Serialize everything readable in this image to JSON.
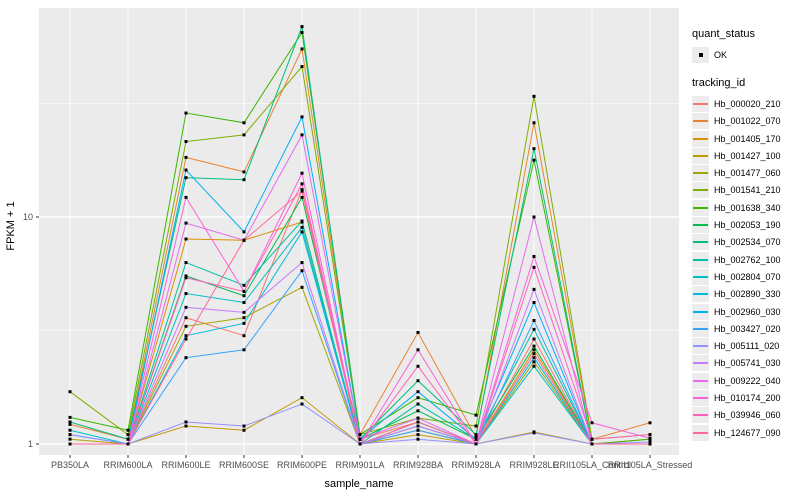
{
  "chart_data": {
    "type": "line",
    "title": "",
    "xlabel": "sample_name",
    "ylabel": "FPKM + 1",
    "y_scale": "log10",
    "ylim": [
      0.93,
      80
    ],
    "yticks": [
      {
        "label": "1",
        "value": 1
      },
      {
        "label": "10",
        "value": 10
      }
    ],
    "y_minor_gridlines": [
      3.1623,
      31.623
    ],
    "grid": "on",
    "panel_background": "#ebebeb",
    "gridline_color": "#ffffff",
    "point_marker": {
      "shape": "square",
      "color": "#000000",
      "size": 3
    },
    "legend_position": "right",
    "categories": [
      "PB350LA",
      "RRIM600LA",
      "RRIM600LE",
      "RRIM600SE",
      "RRIM600PE",
      "RRIM901LA",
      "RRIM928BA",
      "RRIM928LA",
      "RRIM928LE",
      "RRII105LA_Control",
      "RRII105LA_Stressed"
    ],
    "series": [
      {
        "name": "Hb_000020_210",
        "color": "#F8766D",
        "values": [
          1.0,
          1.0,
          3.6,
          3.0,
          13.2,
          1.05,
          1.25,
          1.0,
          2.9,
          1.0,
          1.0
        ]
      },
      {
        "name": "Hb_001022_070",
        "color": "#EA8331",
        "values": [
          1.22,
          1.05,
          18.3,
          15.8,
          55,
          1.1,
          3.1,
          1.07,
          26,
          1.05,
          1.24
        ]
      },
      {
        "name": "Hb_001405_170",
        "color": "#D89000",
        "values": [
          1.0,
          1.0,
          8.0,
          7.9,
          9.5,
          1.0,
          1.2,
          1.0,
          2.6,
          1.0,
          1.0
        ]
      },
      {
        "name": "Hb_001427_100",
        "color": "#C09B00",
        "values": [
          1.05,
          1.0,
          1.2,
          1.15,
          1.6,
          1.0,
          1.1,
          1.0,
          1.13,
          1.0,
          1.05
        ]
      },
      {
        "name": "Hb_001477_060",
        "color": "#A3A500",
        "values": [
          1.0,
          1.0,
          3.3,
          3.6,
          4.9,
          1.0,
          1.15,
          1.0,
          2.3,
          1.0,
          1.0
        ]
      },
      {
        "name": "Hb_001541_210",
        "color": "#7CAE00",
        "values": [
          1.7,
          1.1,
          21.5,
          23,
          46,
          1.1,
          1.3,
          1.2,
          34,
          1.05,
          1.1
        ]
      },
      {
        "name": "Hb_001638_340",
        "color": "#39B600",
        "values": [
          1.31,
          1.15,
          28.7,
          26,
          65,
          1.1,
          1.6,
          1.34,
          17.8,
          1.0,
          1.05
        ]
      },
      {
        "name": "Hb_002053_190",
        "color": "#00BB4E",
        "values": [
          1.0,
          1.0,
          5.5,
          4.5,
          12.2,
          1.05,
          1.4,
          1.05,
          2.7,
          1.0,
          1.0
        ]
      },
      {
        "name": "Hb_002534_070",
        "color": "#00BF7D",
        "values": [
          1.25,
          1.05,
          14.9,
          14.6,
          69,
          1.05,
          1.9,
          1.1,
          20,
          1.0,
          1.0
        ]
      },
      {
        "name": "Hb_002762_100",
        "color": "#00C1A3",
        "values": [
          1.0,
          1.0,
          6.3,
          5.0,
          9.6,
          1.0,
          1.5,
          1.05,
          3.2,
          1.0,
          1.0
        ]
      },
      {
        "name": "Hb_002804_070",
        "color": "#00BFC4",
        "values": [
          1.15,
          1.0,
          4.6,
          4.2,
          9.0,
          1.0,
          1.25,
          1.0,
          2.2,
          1.0,
          1.0
        ]
      },
      {
        "name": "Hb_002890_330",
        "color": "#00BAE0",
        "values": [
          1.0,
          1.0,
          3.0,
          3.4,
          8.6,
          1.0,
          1.2,
          1.0,
          2.4,
          1.0,
          1.0
        ]
      },
      {
        "name": "Hb_002960_030",
        "color": "#00B0F6",
        "values": [
          1.1,
          1.0,
          16.1,
          8.6,
          27.6,
          1.05,
          1.7,
          1.05,
          4.2,
          1.0,
          1.0
        ]
      },
      {
        "name": "Hb_003427_020",
        "color": "#35A2FF",
        "values": [
          1.0,
          1.0,
          2.4,
          2.6,
          5.8,
          1.0,
          1.15,
          1.0,
          3.5,
          1.0,
          1.0
        ]
      },
      {
        "name": "Hb_005111_020",
        "color": "#9590FF",
        "values": [
          1.1,
          1.0,
          1.25,
          1.2,
          1.5,
          1.0,
          1.05,
          1.0,
          1.12,
          1.0,
          1.02
        ]
      },
      {
        "name": "Hb_005741_030",
        "color": "#C77CFF",
        "values": [
          1.0,
          1.0,
          4.0,
          3.8,
          6.3,
          1.0,
          1.2,
          1.0,
          4.8,
          1.0,
          1.0
        ]
      },
      {
        "name": "Hb_009222_040",
        "color": "#E76BF3",
        "values": [
          1.0,
          1.0,
          9.4,
          7.9,
          23,
          1.05,
          1.3,
          1.0,
          10,
          1.0,
          1.0
        ]
      },
      {
        "name": "Hb_010174_200",
        "color": "#FA62DB",
        "values": [
          1.0,
          1.0,
          12.2,
          4.7,
          15.6,
          1.0,
          2.6,
          1.0,
          6.7,
          1.24,
          1.06
        ]
      },
      {
        "name": "Hb_039946_060",
        "color": "#FF62BC",
        "values": [
          1.0,
          1.0,
          5.4,
          4.7,
          14,
          1.0,
          2.2,
          1.0,
          6.0,
          1.05,
          1.1
        ]
      },
      {
        "name": "Hb_124677_090",
        "color": "#FF6A98",
        "values": [
          1.0,
          1.0,
          2.9,
          7.9,
          13,
          1.0,
          1.25,
          1.0,
          2.5,
          1.0,
          1.0
        ]
      }
    ]
  },
  "legend": {
    "quant_status": {
      "title": "quant_status",
      "items": [
        {
          "label": "OK",
          "marker": "black-square"
        }
      ]
    },
    "tracking_id": {
      "title": "tracking_id"
    }
  },
  "layout_text": {
    "tick_label_color": "#4d4d4d",
    "axis_title_color": "#000000"
  }
}
